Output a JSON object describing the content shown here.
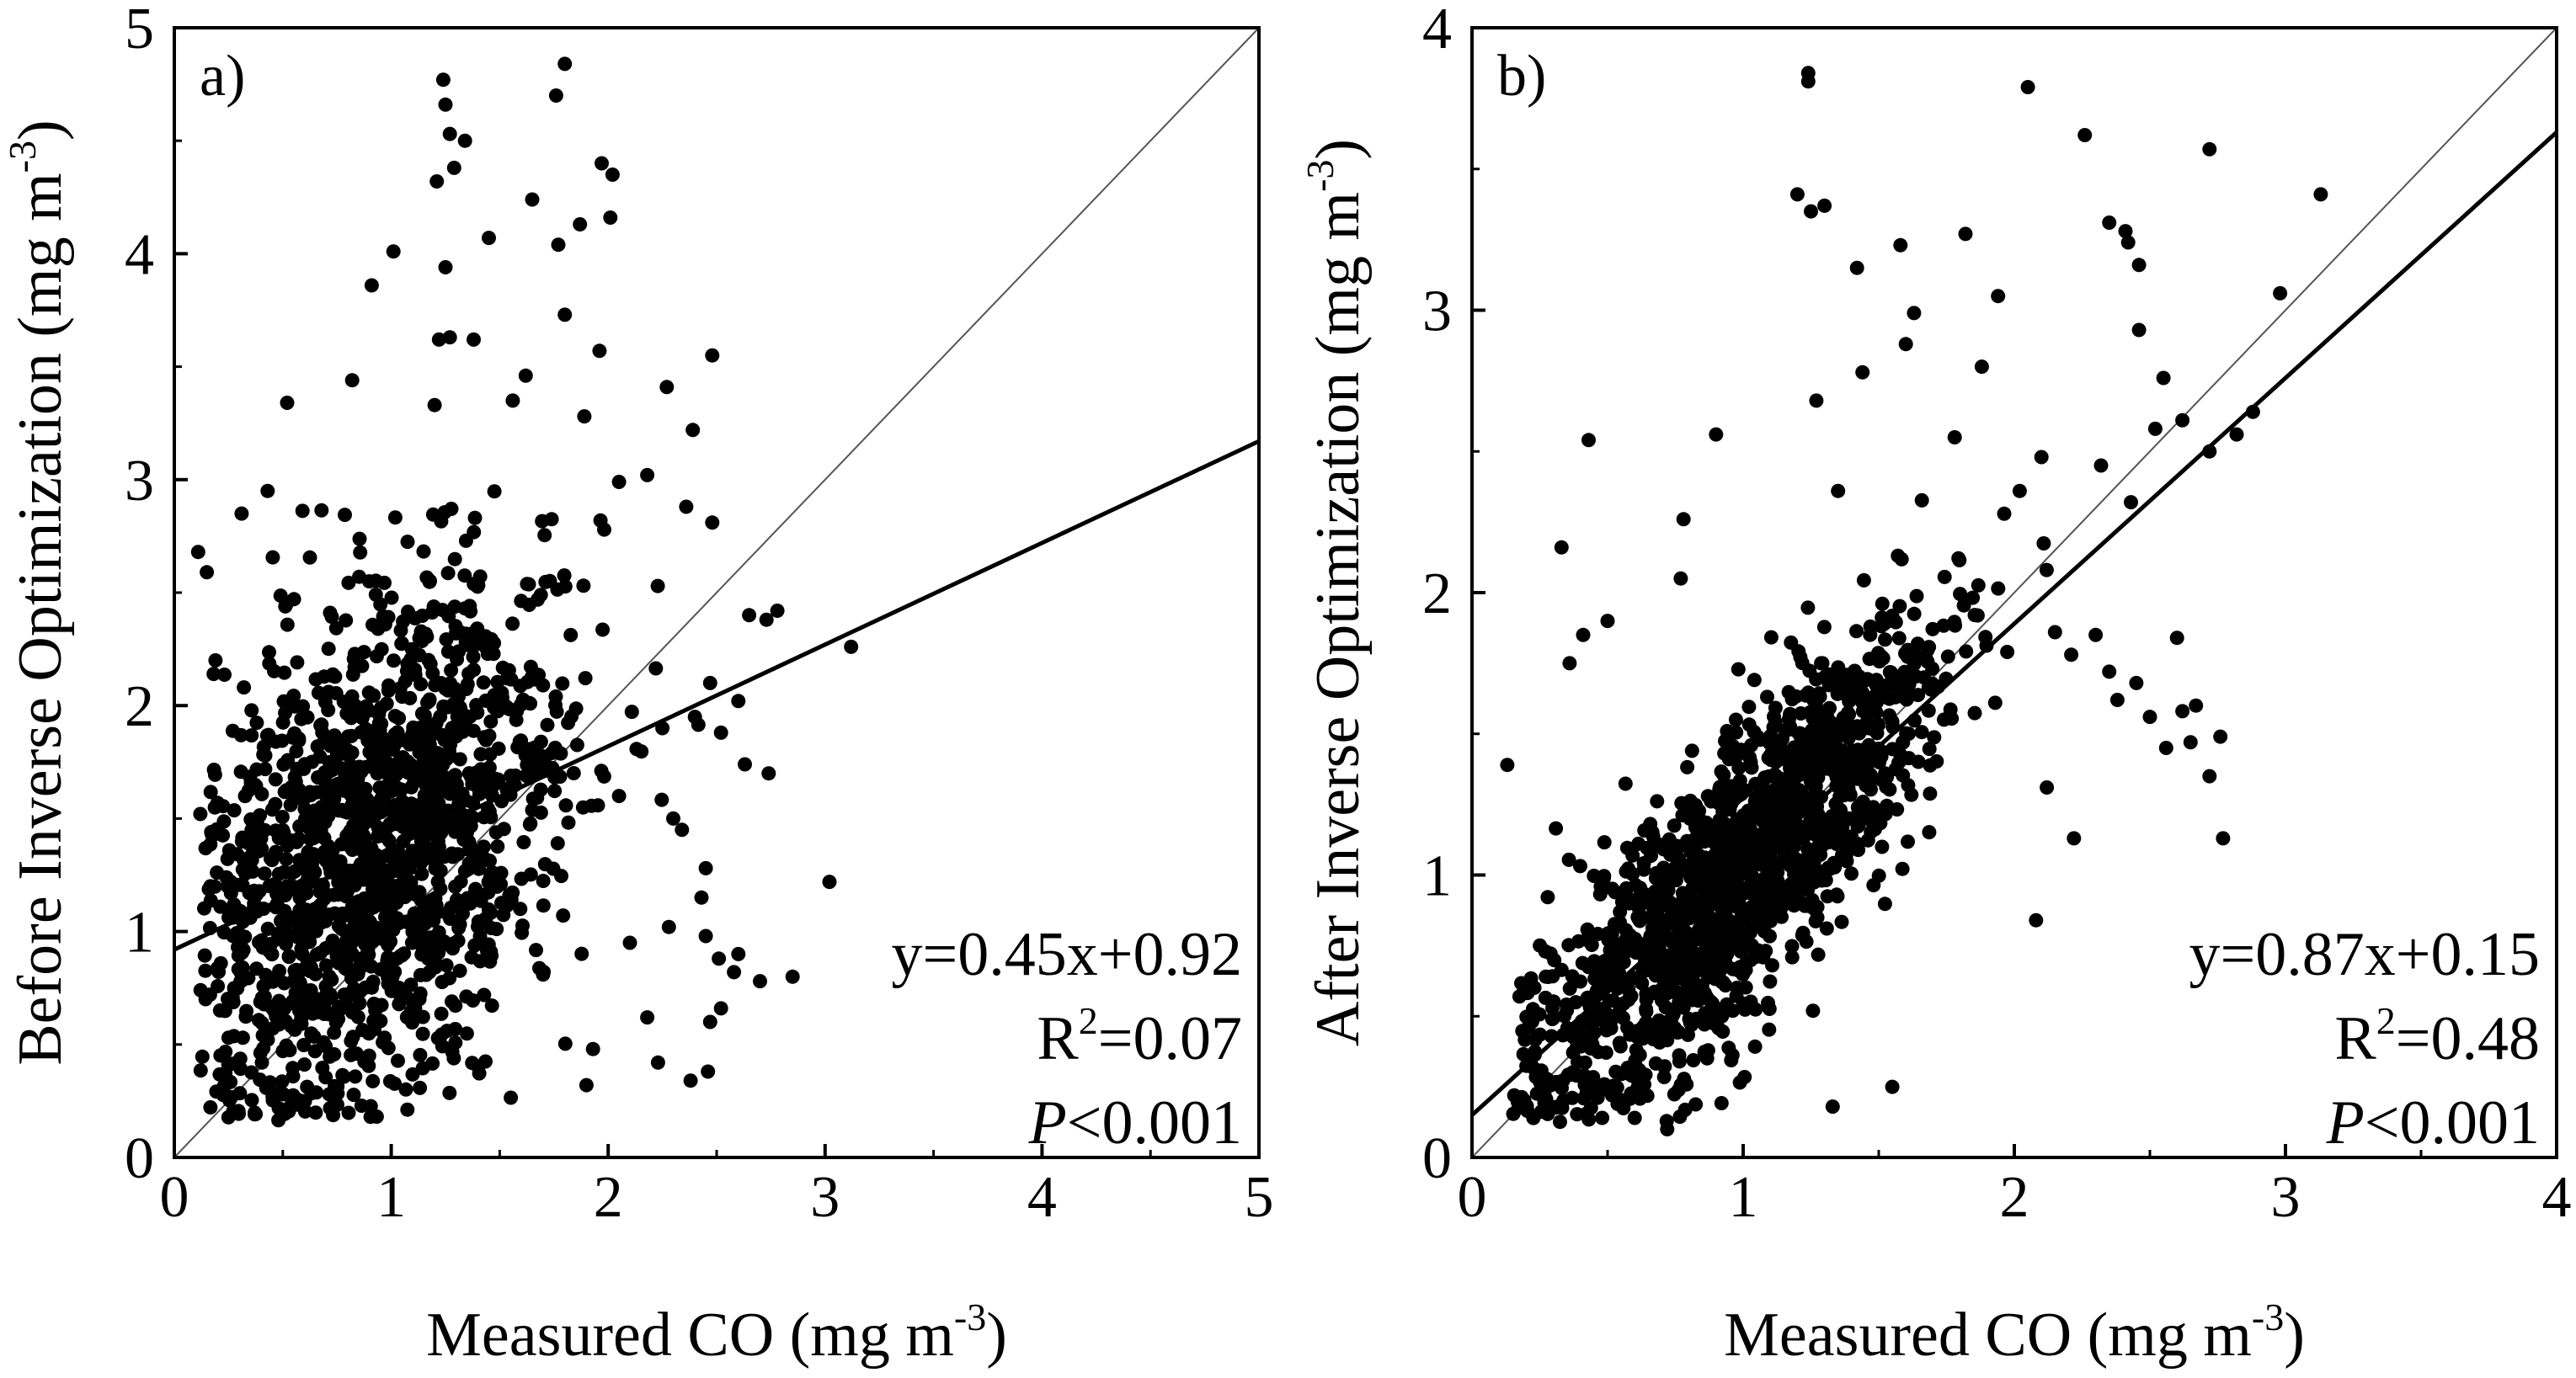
{
  "chart_data": [
    {
      "type": "scatter",
      "panel_label": "a)",
      "xlabel": {
        "main": "Measured CO (mg m",
        "sup": "-3",
        "close": ")"
      },
      "ylabel": {
        "main": "Before Inverse Optimization (mg m",
        "sup": "-3",
        "close": ")"
      },
      "xlim": [
        0,
        5
      ],
      "ylim": [
        0,
        5
      ],
      "xticks": [
        "0",
        "1",
        "2",
        "3",
        "4",
        "5"
      ],
      "yticks": [
        "0",
        "1",
        "2",
        "3",
        "4",
        "5"
      ],
      "one_to_one_line": true,
      "fit": {
        "slope": 0.45,
        "intercept": 0.92
      },
      "equation": "y=0.45x+0.92",
      "r2": {
        "prefix": "R",
        "sup": "2",
        "value": "=0.07"
      },
      "pvalue": {
        "symbol": "P",
        "rest": "<0.001"
      },
      "marker_color": "#000000",
      "scatter_generation": {
        "n": 1500,
        "seed": 7
      },
      "outlier_points": [
        [
          1.24,
          4.77
        ],
        [
          1.8,
          4.84
        ],
        [
          1.76,
          4.7
        ],
        [
          1.25,
          4.66
        ],
        [
          1.27,
          4.53
        ],
        [
          1.34,
          4.5
        ],
        [
          1.97,
          4.4
        ],
        [
          2.02,
          4.35
        ],
        [
          1.21,
          4.32
        ],
        [
          1.29,
          4.38
        ],
        [
          1.65,
          4.24
        ],
        [
          1.77,
          4.04
        ],
        [
          1.87,
          4.13
        ],
        [
          1.45,
          4.07
        ],
        [
          1.01,
          4.01
        ],
        [
          2.01,
          4.16
        ],
        [
          1.25,
          3.94
        ],
        [
          0.91,
          3.86
        ],
        [
          1.8,
          3.73
        ],
        [
          1.96,
          3.57
        ],
        [
          1.27,
          3.63
        ],
        [
          1.38,
          3.62
        ],
        [
          1.22,
          3.62
        ],
        [
          0.82,
          3.44
        ],
        [
          2.48,
          3.55
        ],
        [
          1.62,
          3.46
        ],
        [
          2.27,
          3.41
        ],
        [
          1.2,
          3.33
        ],
        [
          1.56,
          3.35
        ],
        [
          0.52,
          3.34
        ],
        [
          2.39,
          3.22
        ],
        [
          1.89,
          3.28
        ],
        [
          2.18,
          3.02
        ],
        [
          2.36,
          2.88
        ],
        [
          2.48,
          2.81
        ],
        [
          2.05,
          2.99
        ],
        [
          2.65,
          2.4
        ],
        [
          2.78,
          2.42
        ],
        [
          2.73,
          2.38
        ],
        [
          3.12,
          2.26
        ],
        [
          2.47,
          2.1
        ],
        [
          2.6,
          2.02
        ],
        [
          2.4,
          1.95
        ],
        [
          2.25,
          1.9
        ],
        [
          2.52,
          1.88
        ],
        [
          2.63,
          1.74
        ],
        [
          2.74,
          1.7
        ],
        [
          2.05,
          1.6
        ],
        [
          2.3,
          1.5
        ],
        [
          2.34,
          1.45
        ],
        [
          2.45,
          1.28
        ],
        [
          3.02,
          1.22
        ],
        [
          2.43,
          1.15
        ],
        [
          2.6,
          0.9
        ],
        [
          2.45,
          0.98
        ],
        [
          2.58,
          0.82
        ],
        [
          2.47,
          0.6
        ],
        [
          2.7,
          0.78
        ],
        [
          2.85,
          0.8
        ],
        [
          2.52,
          0.66
        ],
        [
          2.46,
          0.38
        ],
        [
          2.38,
          0.34
        ],
        [
          2.23,
          0.42
        ],
        [
          2.51,
          0.88
        ],
        [
          0.11,
          2.68
        ],
        [
          0.15,
          2.59
        ],
        [
          0.31,
          2.85
        ],
        [
          0.43,
          2.95
        ],
        [
          0.19,
          2.2
        ],
        [
          0.12,
          1.52
        ],
        [
          0.17,
          1.44
        ],
        [
          1.9,
          0.32
        ],
        [
          1.93,
          0.48
        ],
        [
          2.1,
          0.95
        ],
        [
          2.18,
          0.62
        ],
        [
          2.28,
          1.02
        ]
      ]
    },
    {
      "type": "scatter",
      "panel_label": "b)",
      "xlabel": {
        "main": "Measured CO (mg m",
        "sup": "-3",
        "close": ")"
      },
      "ylabel": {
        "main": "After Inverse Optimization (mg m",
        "sup": "-3",
        "close": ")"
      },
      "xlim": [
        0,
        4
      ],
      "ylim": [
        0,
        4
      ],
      "xticks": [
        "0",
        "1",
        "2",
        "3",
        "4"
      ],
      "yticks": [
        "0",
        "1",
        "2",
        "3",
        "4"
      ],
      "one_to_one_line": true,
      "fit": {
        "slope": 0.87,
        "intercept": 0.15
      },
      "equation": "y=0.87x+0.15",
      "r2": {
        "prefix": "R",
        "sup": "2",
        "value": "=0.48"
      },
      "pvalue": {
        "symbol": "P",
        "rest": "<0.001"
      },
      "marker_color": "#000000",
      "scatter_generation": {
        "n": 1500,
        "seed": 11
      },
      "outlier_points": [
        [
          1.24,
          3.84
        ],
        [
          1.24,
          3.81
        ],
        [
          2.05,
          3.79
        ],
        [
          2.26,
          3.62
        ],
        [
          2.72,
          3.57
        ],
        [
          3.13,
          3.41
        ],
        [
          1.2,
          3.41
        ],
        [
          1.3,
          3.37
        ],
        [
          1.25,
          3.35
        ],
        [
          2.35,
          3.31
        ],
        [
          2.41,
          3.28
        ],
        [
          2.42,
          3.24
        ],
        [
          1.82,
          3.27
        ],
        [
          1.58,
          3.23
        ],
        [
          1.42,
          3.15
        ],
        [
          2.46,
          3.16
        ],
        [
          1.94,
          3.05
        ],
        [
          2.98,
          3.06
        ],
        [
          1.63,
          2.99
        ],
        [
          2.46,
          2.93
        ],
        [
          1.6,
          2.88
        ],
        [
          1.88,
          2.8
        ],
        [
          1.44,
          2.78
        ],
        [
          2.55,
          2.76
        ],
        [
          0.43,
          2.54
        ],
        [
          2.1,
          2.48
        ],
        [
          2.32,
          2.45
        ],
        [
          2.52,
          2.58
        ],
        [
          2.62,
          2.61
        ],
        [
          2.72,
          2.5
        ],
        [
          2.82,
          2.56
        ],
        [
          2.88,
          2.64
        ],
        [
          1.27,
          2.68
        ],
        [
          1.35,
          2.36
        ],
        [
          1.78,
          2.55
        ],
        [
          2.02,
          2.36
        ],
        [
          2.43,
          2.32
        ],
        [
          2.6,
          1.84
        ],
        [
          2.3,
          1.85
        ],
        [
          2.21,
          1.78
        ],
        [
          2.15,
          1.86
        ],
        [
          2.35,
          1.72
        ],
        [
          2.45,
          1.68
        ],
        [
          2.38,
          1.62
        ],
        [
          2.5,
          1.56
        ],
        [
          2.62,
          1.58
        ],
        [
          2.67,
          1.6
        ],
        [
          2.56,
          1.45
        ],
        [
          2.65,
          1.47
        ],
        [
          2.72,
          1.35
        ],
        [
          2.76,
          1.49
        ],
        [
          2.77,
          1.13
        ],
        [
          2.12,
          1.31
        ],
        [
          2.22,
          1.13
        ],
        [
          2.08,
          0.84
        ],
        [
          1.55,
          0.25
        ],
        [
          1.33,
          0.18
        ],
        [
          0.13,
          1.39
        ],
        [
          0.33,
          2.16
        ],
        [
          0.41,
          1.85
        ],
        [
          0.5,
          1.9
        ],
        [
          0.36,
          1.75
        ],
        [
          0.78,
          2.26
        ],
        [
          0.77,
          2.05
        ],
        [
          0.9,
          2.56
        ],
        [
          0.6,
          0.14
        ],
        [
          0.72,
          0.1
        ],
        [
          0.48,
          0.14
        ]
      ]
    }
  ]
}
